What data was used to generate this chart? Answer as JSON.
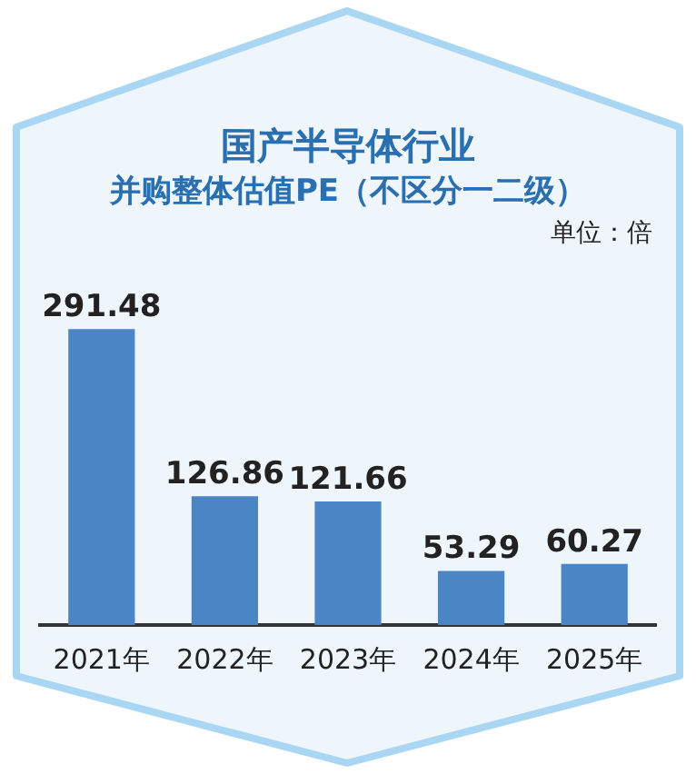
{
  "chart_data": {
    "type": "bar",
    "title": "国产半导体行业",
    "subtitle": "并购整体估值PE（不区分一二级）",
    "annotations": [
      "单位：倍"
    ],
    "categories": [
      "2021年",
      "2022年",
      "2023年",
      "2024年",
      "2025年"
    ],
    "values": [
      291.48,
      126.86,
      121.66,
      53.29,
      60.27
    ],
    "color": "#4a86c5",
    "data_labels": true
  }
}
